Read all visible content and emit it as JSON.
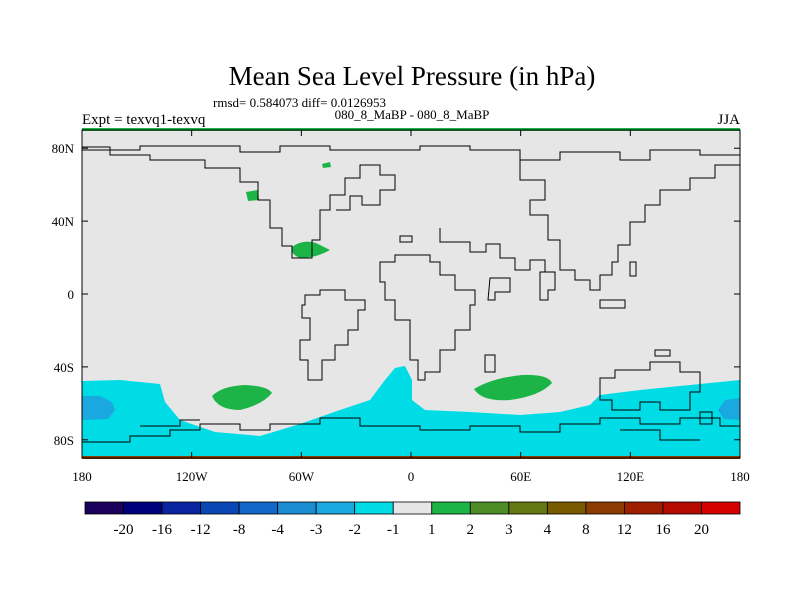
{
  "chart_data": {
    "type": "heatmap",
    "title": "Mean Sea Level Pressure (in hPa)",
    "stats": "rmsd= 0.584073 diff= 0.0126953",
    "comparison": "080_8_MaBP - 080_8_MaBP",
    "left_label": "Expt = texvq1-texvq",
    "season": "JJA",
    "xlim": [
      -180,
      180
    ],
    "ylim": [
      -90,
      90
    ],
    "x_ticks": [
      {
        "value": -180,
        "label": "180"
      },
      {
        "value": -120,
        "label": "120W"
      },
      {
        "value": -60,
        "label": "60W"
      },
      {
        "value": 0,
        "label": "0"
      },
      {
        "value": 60,
        "label": "60E"
      },
      {
        "value": 120,
        "label": "120E"
      },
      {
        "value": 180,
        "label": "180"
      }
    ],
    "y_ticks": [
      {
        "value": 80,
        "label": "80N"
      },
      {
        "value": 40,
        "label": "40N"
      },
      {
        "value": 0,
        "label": "0"
      },
      {
        "value": -40,
        "label": "40S"
      },
      {
        "value": -80,
        "label": "80S"
      }
    ],
    "colorbar": {
      "colors": [
        "#1c005e",
        "#00007a",
        "#0a239e",
        "#0a46b4",
        "#1268c8",
        "#1a8cd2",
        "#1aa8e0",
        "#00dce6",
        "#e6e6e6",
        "#1cb446",
        "#4e8c28",
        "#647814",
        "#785a00",
        "#8c3c00",
        "#a01e00",
        "#b40a00",
        "#d20000"
      ],
      "labels": [
        "-20",
        "-16",
        "-12",
        "-8",
        "-4",
        "-3",
        "-2",
        "-1",
        "1",
        "2",
        "3",
        "4",
        "8",
        "12",
        "16",
        "20"
      ]
    },
    "background_color": "#e6e6e6",
    "anomaly_regions": [
      {
        "name": "southern-ocean-band",
        "level": "-2 to -1",
        "color": "#00dce6"
      },
      {
        "name": "south-pacific-core",
        "level": "-3 to -2",
        "color": "#1aa8e0"
      },
      {
        "name": "south-indian-core",
        "level": "-3 to -2",
        "color": "#1aa8e0"
      },
      {
        "name": "south-pacific-high",
        "level": "1 to 2",
        "color": "#1cb446"
      },
      {
        "name": "south-indian-high",
        "level": "1 to 2",
        "color": "#1cb446"
      },
      {
        "name": "north-atlantic-high",
        "level": "1 to 2",
        "color": "#1cb446"
      },
      {
        "name": "labrador-high",
        "level": "1 to 2",
        "color": "#1cb446"
      },
      {
        "name": "arctic-high",
        "level": "1 to 2",
        "color": "#1cb446"
      }
    ]
  }
}
